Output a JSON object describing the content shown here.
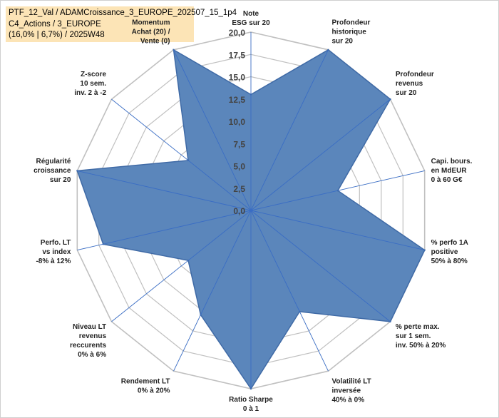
{
  "title_box": {
    "line1": "PTF_12_Val / ADAMCroissance_3_EUROPE_202507_15_1p4",
    "line2": "C4_Actions / 3_EUROPE",
    "line3": "(16,0% | 6,7%) / 2025W48"
  },
  "colors": {
    "fill": "#5b86bb",
    "stroke": "#3f6aa6",
    "grid": "#c0c0c0",
    "spoke": "#3a6dc4",
    "momentum_label": "#c8a86a"
  },
  "chart_data": {
    "type": "radar",
    "title": "",
    "r_range": [
      0,
      20
    ],
    "r_ticks": [
      "0,0",
      "2,5",
      "5,0",
      "7,5",
      "10,0",
      "12,5",
      "15,0",
      "17,5",
      "20,0"
    ],
    "axes": [
      {
        "label_lines": [
          "Note",
          "ESG sur 20"
        ],
        "value": 13.0
      },
      {
        "label_lines": [
          "Profondeur",
          "historique",
          "sur 20"
        ],
        "value": 20.0
      },
      {
        "label_lines": [
          "Profondeur",
          "revenus",
          "sur 20"
        ],
        "value": 20.0
      },
      {
        "label_lines": [
          "Capi. bours.",
          "en MdEUR",
          "0 à 60 G€"
        ],
        "value": 10.0
      },
      {
        "label_lines": [
          "% perfo 1A",
          "positive",
          "50% à 80%"
        ],
        "value": 20.0
      },
      {
        "label_lines": [
          "% perte max.",
          "sur 1 sem.",
          "inv. 50% à 20%"
        ],
        "value": 20.0
      },
      {
        "label_lines": [
          "Volatilité LT",
          "inversée",
          "40% à 0%"
        ],
        "value": 12.6
      },
      {
        "label_lines": [
          "Ratio Sharpe",
          "0 à 1"
        ],
        "value": 20.0
      },
      {
        "label_lines": [
          "Rendement LT",
          "0% à 20%"
        ],
        "value": 13.0
      },
      {
        "label_lines": [
          "Niveau LT",
          "revenus",
          "reccurents",
          "0% à 6%"
        ],
        "value": 9.0
      },
      {
        "label_lines": [
          "Perfo. LT",
          "vs index",
          "-8% à 12%"
        ],
        "value": 17.0
      },
      {
        "label_lines": [
          "Régularité",
          "croissance",
          "sur 20"
        ],
        "value": 20.0
      },
      {
        "label_lines": [
          "Z-score",
          "10 sem.",
          "inv. 2 à -2"
        ],
        "value": 9.0
      },
      {
        "label_lines": [
          "Momentum",
          "Achat (20) /",
          "Vente (0)"
        ],
        "value": 20.0
      }
    ]
  }
}
